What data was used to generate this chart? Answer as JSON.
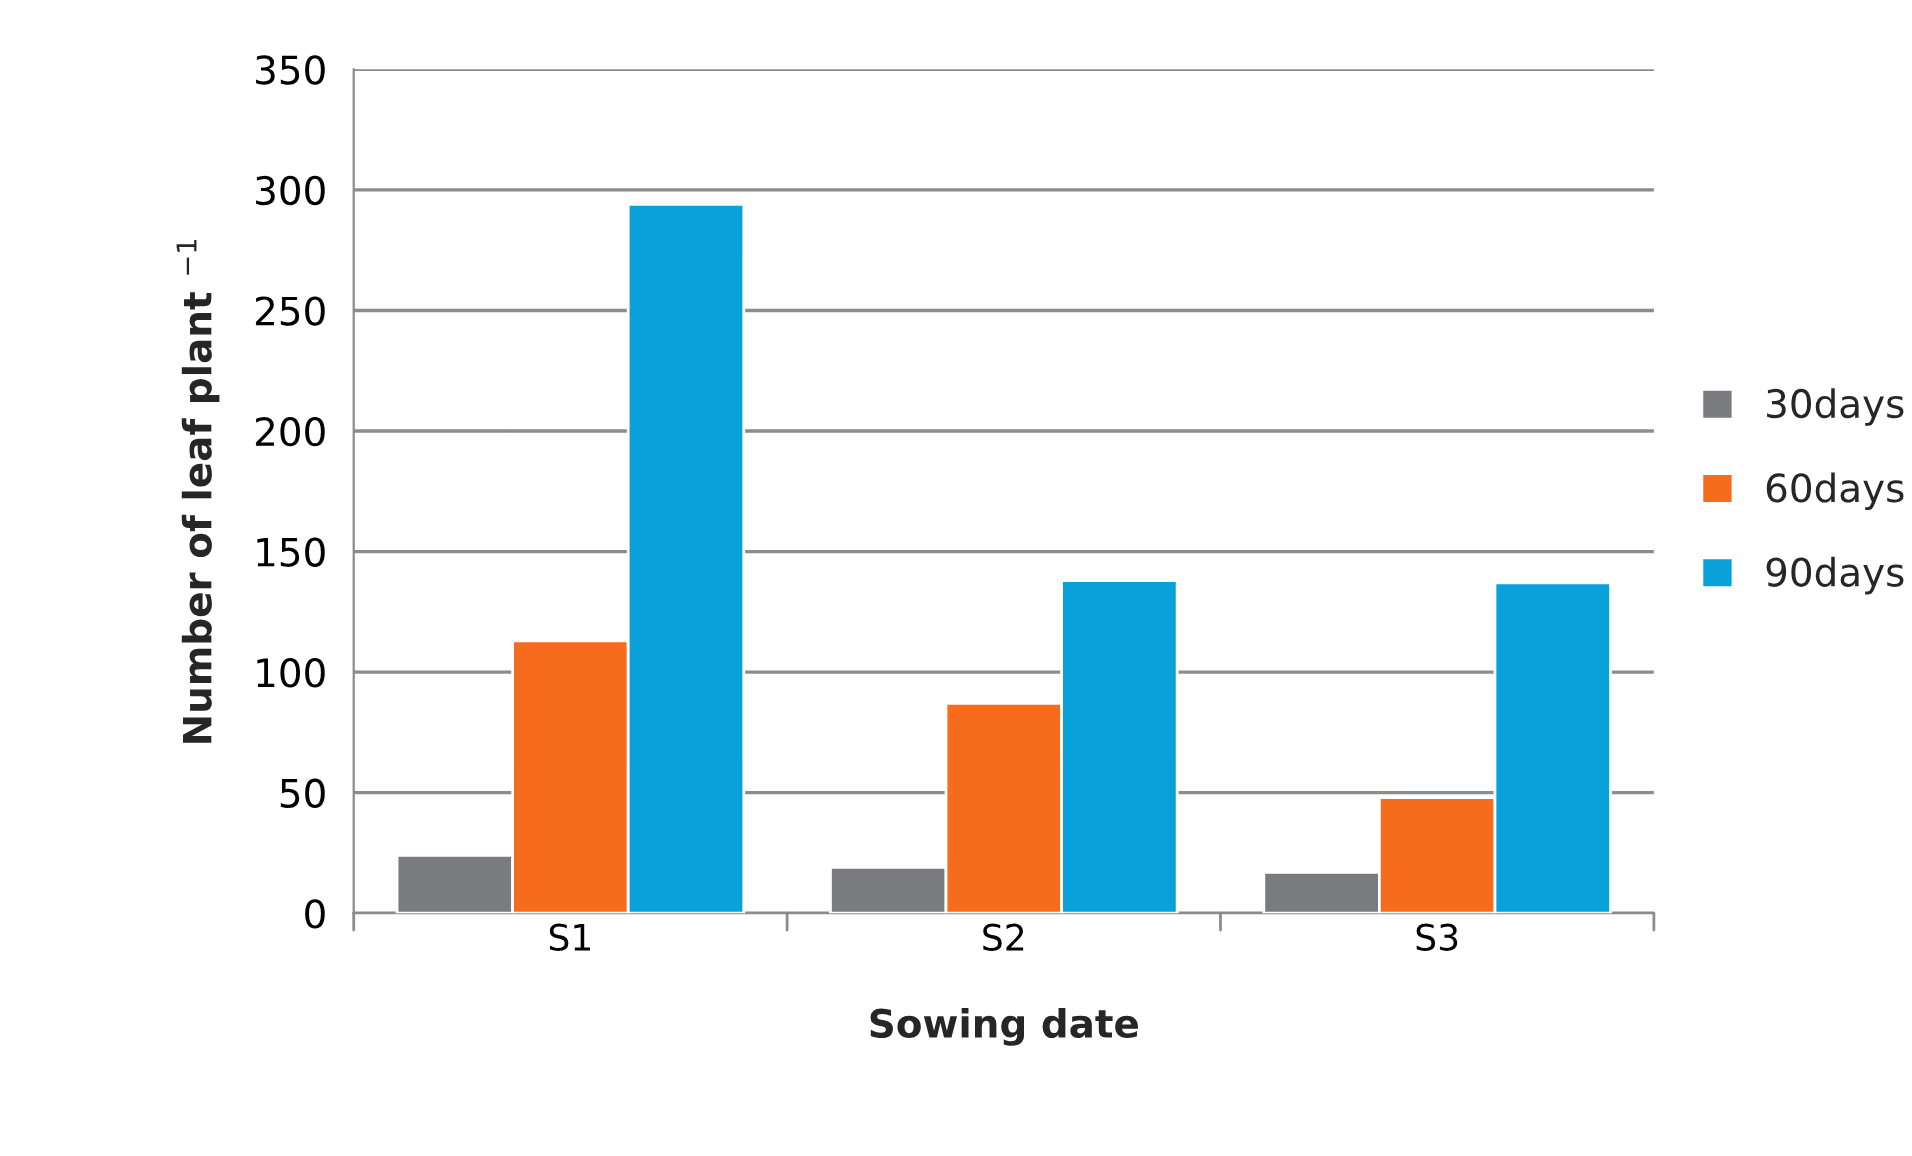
{
  "chart_data": {
    "type": "bar",
    "xlabel": "Sowing date",
    "ylabel": "Number of leaf plant $^{−1}$",
    "categories": [
      "S1",
      "S2",
      "S3"
    ],
    "series": [
      {
        "name": "30days",
        "color": "#7a7b7e",
        "values": [
          24,
          19,
          17
        ]
      },
      {
        "name": "60days",
        "color": "#f76b1c",
        "values": [
          113,
          87,
          48
        ]
      },
      {
        "name": "90days",
        "color": "#08a1da",
        "values": [
          294,
          138,
          137
        ]
      }
    ],
    "ylim": [
      0,
      350
    ],
    "yticks": [
      0,
      50,
      100,
      150,
      200,
      250,
      300,
      350
    ],
    "grid": "y",
    "legend": "right"
  }
}
